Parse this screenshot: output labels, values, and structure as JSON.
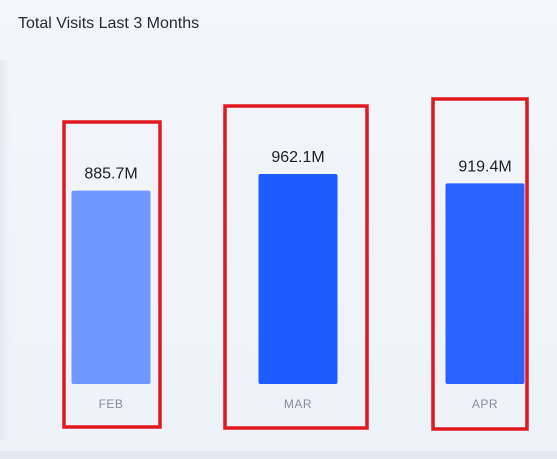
{
  "chart_data": {
    "type": "bar",
    "title": "Total Visits Last 3 Months",
    "categories": [
      "FEB",
      "MAR",
      "APR"
    ],
    "values": [
      885.7,
      962.1,
      919.4
    ],
    "value_labels": [
      "885.7M",
      "962.1M",
      "919.4M"
    ],
    "unit": "M",
    "ylim": [
      0,
      1000
    ],
    "grid": false,
    "legend": "none",
    "colors": [
      "#6f98ff",
      "#1f5cff",
      "#2962ff"
    ],
    "highlight_color": "#e0191f"
  }
}
